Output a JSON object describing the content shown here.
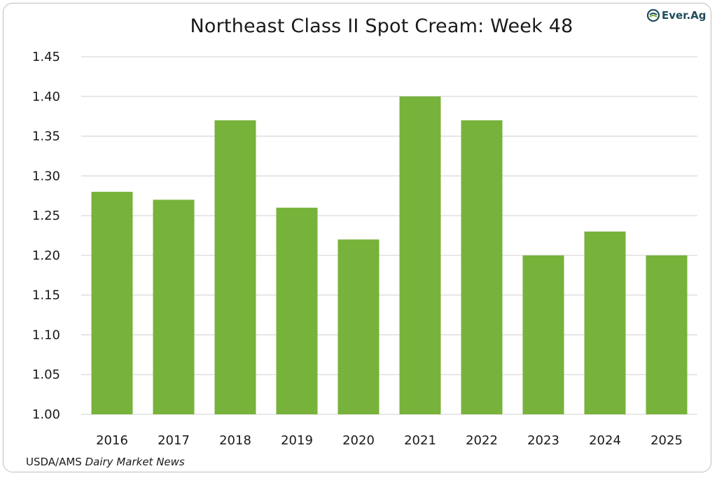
{
  "brand": {
    "logo_text": "Ever.Ag",
    "logo_color": "#1f4e5a"
  },
  "source": {
    "prefix": "USDA/AMS ",
    "italic": "Dairy Market News"
  },
  "chart_data": {
    "type": "bar",
    "title": "Northeast Class II Spot Cream: Week 48",
    "xlabel": "",
    "ylabel": "",
    "categories": [
      "2016",
      "2017",
      "2018",
      "2019",
      "2020",
      "2021",
      "2022",
      "2023",
      "2024",
      "2025"
    ],
    "values": [
      1.28,
      1.27,
      1.37,
      1.26,
      1.22,
      1.4,
      1.37,
      1.2,
      1.23,
      1.2
    ],
    "ylim": [
      1.0,
      1.45
    ],
    "yticks": [
      "1.00",
      "1.05",
      "1.10",
      "1.15",
      "1.20",
      "1.25",
      "1.30",
      "1.35",
      "1.40",
      "1.45"
    ],
    "grid": true,
    "legend": "none",
    "bar_color": "#77b23a",
    "grid_color": "#d0d0d0"
  }
}
